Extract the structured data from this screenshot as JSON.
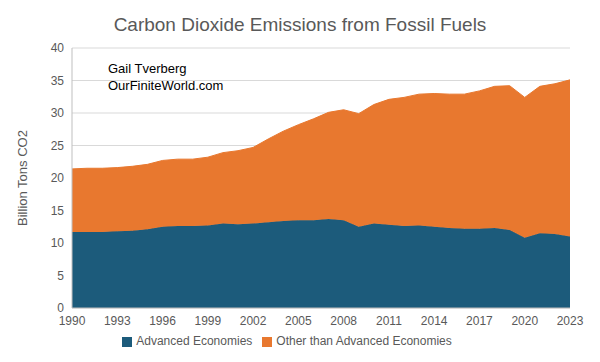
{
  "chart_data": {
    "type": "area",
    "title": "Carbon Dioxide Emissions from Fossil Fuels",
    "annotations": [
      "Gail Tverberg",
      "OurFiniteWorld.com"
    ],
    "y_label": "Billion Tons CO2",
    "stacked": true,
    "grid": true,
    "legend": "bottom",
    "x": [
      1990,
      1991,
      1992,
      1993,
      1994,
      1995,
      1996,
      1997,
      1998,
      1999,
      2000,
      2001,
      2002,
      2003,
      2004,
      2005,
      2006,
      2007,
      2008,
      2009,
      2010,
      2011,
      2012,
      2013,
      2014,
      2015,
      2016,
      2017,
      2018,
      2019,
      2020,
      2021,
      2022,
      2023
    ],
    "xlim": [
      1990,
      2023
    ],
    "xticks": [
      1990,
      1993,
      1996,
      1999,
      2002,
      2005,
      2008,
      2011,
      2014,
      2017,
      2020,
      2023
    ],
    "ylim": [
      0,
      40
    ],
    "yticks": [
      0,
      5,
      10,
      15,
      20,
      25,
      30,
      35,
      40
    ],
    "series": [
      {
        "name": "Advanced Economies",
        "color": "#1c5b7b",
        "values": [
          11.7,
          11.7,
          11.7,
          11.8,
          11.9,
          12.1,
          12.5,
          12.6,
          12.6,
          12.7,
          13.0,
          12.9,
          13.0,
          13.2,
          13.4,
          13.5,
          13.5,
          13.7,
          13.5,
          12.5,
          13.0,
          12.8,
          12.6,
          12.7,
          12.5,
          12.3,
          12.2,
          12.2,
          12.3,
          12.0,
          10.8,
          11.5,
          11.4,
          11.0
        ]
      },
      {
        "name": "Other than Advanced Economies",
        "color": "#e8782f",
        "values": [
          9.7,
          9.8,
          9.8,
          9.8,
          9.9,
          10.0,
          10.2,
          10.3,
          10.3,
          10.5,
          10.9,
          11.3,
          11.7,
          12.8,
          13.8,
          14.7,
          15.6,
          16.4,
          17.0,
          17.4,
          18.3,
          19.3,
          19.8,
          20.2,
          20.5,
          20.6,
          20.7,
          21.2,
          21.8,
          22.2,
          21.6,
          22.6,
          23.1,
          24.1
        ]
      }
    ]
  }
}
